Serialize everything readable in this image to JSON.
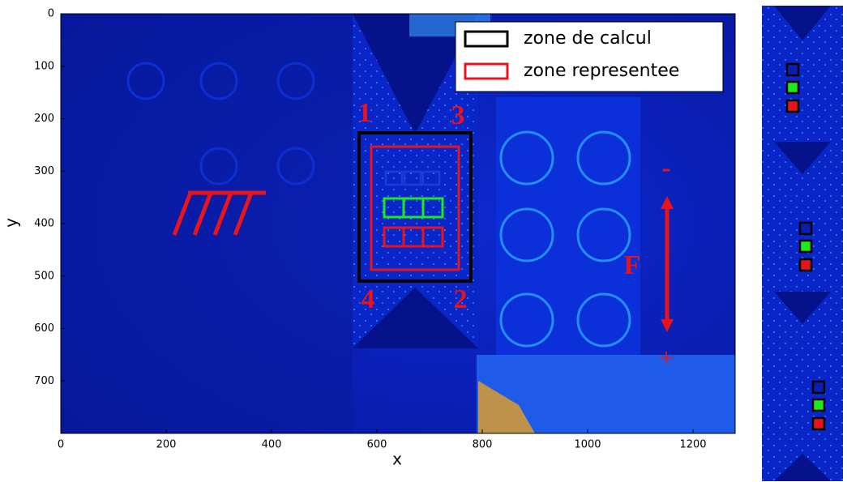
{
  "chart_data": {
    "type": "image",
    "xlabel": "x",
    "ylabel": "y",
    "xlim": [
      0,
      1280
    ],
    "ylim": [
      800,
      0
    ],
    "xticks": [
      0,
      200,
      400,
      600,
      800,
      1000,
      1200
    ],
    "yticks": [
      0,
      100,
      200,
      300,
      400,
      500,
      600,
      700
    ],
    "legend": [
      {
        "name": "zone de calcul",
        "color": "#000000"
      },
      {
        "name": "zone representee",
        "color": "#e8141c"
      }
    ],
    "legend_position": "upper right",
    "annotations": [
      "1",
      "3",
      "4",
      "2",
      "F",
      "-",
      "+"
    ]
  }
}
